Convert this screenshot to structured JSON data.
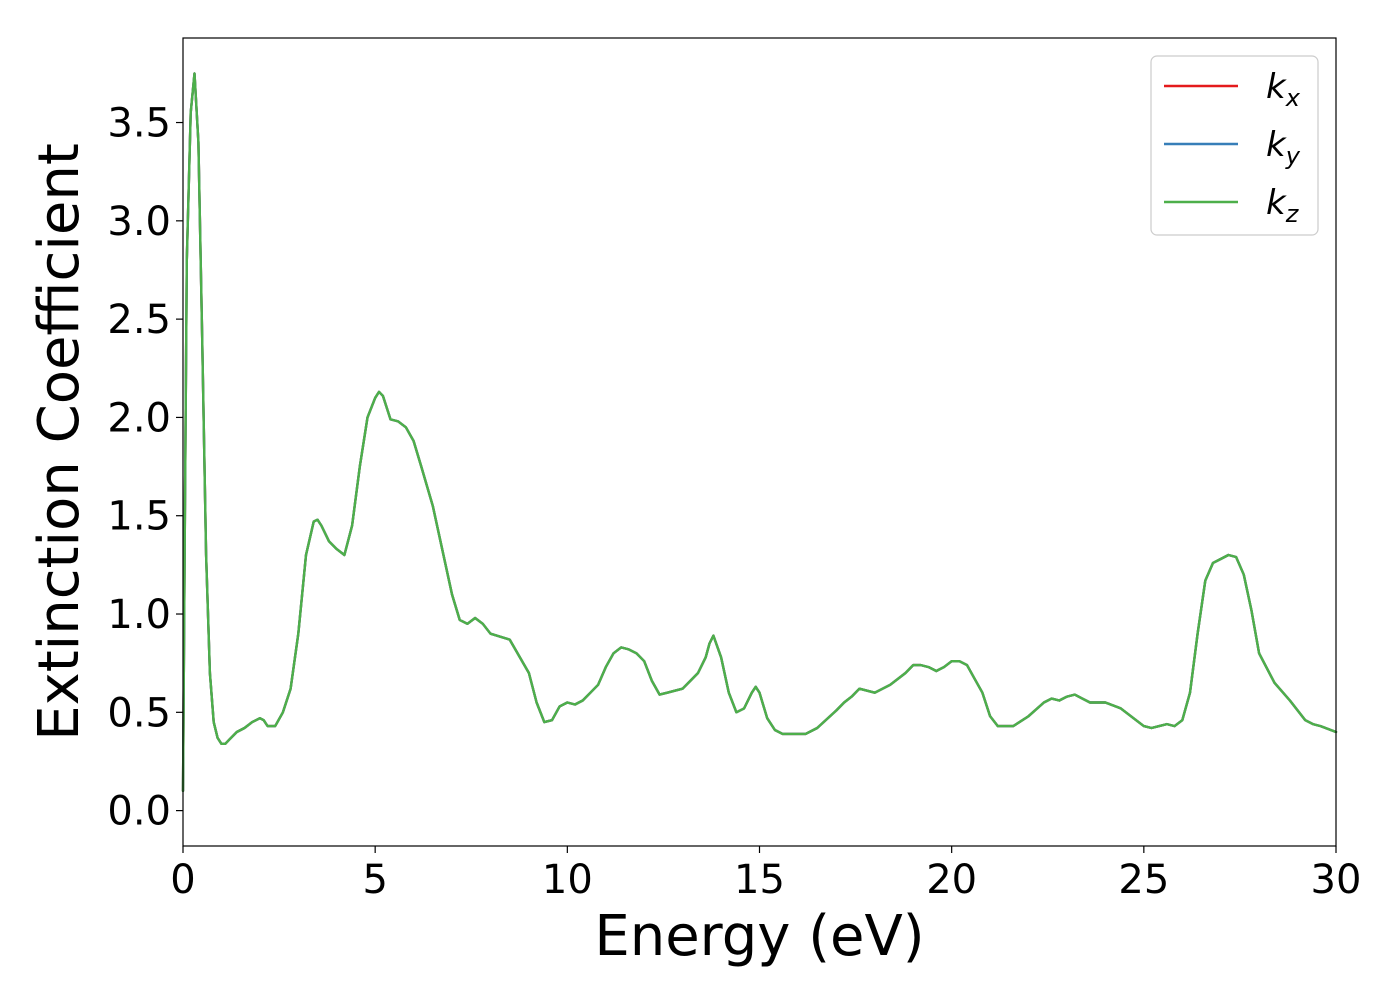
{
  "chart_data": {
    "type": "line",
    "title": "",
    "xlabel": "Energy (eV)",
    "ylabel": "Extinction Coefficient",
    "xlim": [
      0,
      30
    ],
    "ylim": [
      -0.18,
      3.93
    ],
    "x_ticks": [
      0,
      5,
      10,
      15,
      20,
      25,
      30
    ],
    "x_tick_labels": [
      "0",
      "5",
      "10",
      "15",
      "20",
      "25",
      "30"
    ],
    "y_ticks": [
      0.0,
      0.5,
      1.0,
      1.5,
      2.0,
      2.5,
      3.0,
      3.5
    ],
    "y_tick_labels": [
      "0.0",
      "0.5",
      "1.0",
      "1.5",
      "2.0",
      "2.5",
      "3.0",
      "3.5"
    ],
    "grid": false,
    "legend_position": "top-right",
    "legend": [
      {
        "base": "k",
        "sub": "x",
        "color": "#e41a1c"
      },
      {
        "base": "k",
        "sub": "y",
        "color": "#377eb8"
      },
      {
        "base": "k",
        "sub": "z",
        "color": "#4daf4a"
      }
    ],
    "x": [
      0.0,
      0.05,
      0.1,
      0.2,
      0.3,
      0.4,
      0.5,
      0.6,
      0.7,
      0.8,
      0.9,
      1.0,
      1.1,
      1.2,
      1.4,
      1.6,
      1.8,
      2.0,
      2.1,
      2.2,
      2.4,
      2.6,
      2.8,
      3.0,
      3.2,
      3.4,
      3.5,
      3.6,
      3.8,
      4.0,
      4.2,
      4.4,
      4.6,
      4.8,
      5.0,
      5.1,
      5.2,
      5.4,
      5.6,
      5.8,
      6.0,
      6.2,
      6.5,
      7.0,
      7.2,
      7.4,
      7.6,
      7.8,
      8.0,
      8.5,
      9.0,
      9.2,
      9.4,
      9.6,
      9.8,
      10.0,
      10.2,
      10.4,
      10.6,
      10.8,
      11.0,
      11.2,
      11.4,
      11.6,
      11.8,
      12.0,
      12.2,
      12.4,
      12.6,
      12.8,
      13.0,
      13.2,
      13.4,
      13.6,
      13.7,
      13.8,
      14.0,
      14.2,
      14.4,
      14.6,
      14.8,
      14.9,
      15.0,
      15.2,
      15.4,
      15.6,
      15.8,
      16.0,
      16.2,
      16.5,
      17.0,
      17.2,
      17.4,
      17.6,
      17.8,
      18.0,
      18.4,
      18.8,
      19.0,
      19.2,
      19.4,
      19.6,
      19.8,
      20.0,
      20.2,
      20.4,
      20.6,
      20.8,
      21.0,
      21.2,
      21.6,
      22.0,
      22.4,
      22.6,
      22.8,
      23.0,
      23.2,
      23.4,
      23.6,
      23.8,
      24.0,
      24.4,
      24.8,
      25.0,
      25.2,
      25.4,
      25.6,
      25.8,
      26.0,
      26.2,
      26.4,
      26.6,
      26.8,
      27.0,
      27.2,
      27.4,
      27.6,
      27.8,
      28.0,
      28.4,
      28.8,
      29.2,
      29.4,
      29.6,
      30.0
    ],
    "series": [
      {
        "name": "k_x",
        "color": "#e41a1c",
        "values": [
          0.1,
          1.5,
          2.8,
          3.55,
          3.75,
          3.4,
          2.4,
          1.3,
          0.7,
          0.45,
          0.37,
          0.34,
          0.34,
          0.36,
          0.4,
          0.42,
          0.45,
          0.47,
          0.46,
          0.43,
          0.43,
          0.5,
          0.62,
          0.9,
          1.3,
          1.47,
          1.48,
          1.45,
          1.37,
          1.33,
          1.3,
          1.45,
          1.75,
          2.0,
          2.1,
          2.13,
          2.11,
          1.99,
          1.98,
          1.95,
          1.88,
          1.75,
          1.55,
          1.1,
          0.97,
          0.95,
          0.98,
          0.95,
          0.9,
          0.87,
          0.7,
          0.55,
          0.45,
          0.46,
          0.53,
          0.55,
          0.54,
          0.56,
          0.6,
          0.64,
          0.73,
          0.8,
          0.83,
          0.82,
          0.8,
          0.76,
          0.66,
          0.59,
          0.6,
          0.61,
          0.62,
          0.66,
          0.7,
          0.78,
          0.85,
          0.89,
          0.78,
          0.6,
          0.5,
          0.52,
          0.6,
          0.63,
          0.6,
          0.47,
          0.41,
          0.39,
          0.39,
          0.39,
          0.39,
          0.42,
          0.51,
          0.55,
          0.58,
          0.62,
          0.61,
          0.6,
          0.64,
          0.7,
          0.74,
          0.74,
          0.73,
          0.71,
          0.73,
          0.76,
          0.76,
          0.74,
          0.67,
          0.6,
          0.48,
          0.43,
          0.43,
          0.48,
          0.55,
          0.57,
          0.56,
          0.58,
          0.59,
          0.57,
          0.55,
          0.55,
          0.55,
          0.52,
          0.46,
          0.43,
          0.42,
          0.43,
          0.44,
          0.43,
          0.46,
          0.6,
          0.9,
          1.17,
          1.26,
          1.28,
          1.3,
          1.29,
          1.2,
          1.02,
          0.8,
          0.65,
          0.56,
          0.46,
          0.44,
          0.43,
          0.4
        ]
      },
      {
        "name": "k_y",
        "color": "#377eb8",
        "values": [
          0.1,
          1.5,
          2.8,
          3.55,
          3.75,
          3.4,
          2.4,
          1.3,
          0.7,
          0.45,
          0.37,
          0.34,
          0.34,
          0.36,
          0.4,
          0.42,
          0.45,
          0.47,
          0.46,
          0.43,
          0.43,
          0.5,
          0.62,
          0.9,
          1.3,
          1.47,
          1.48,
          1.45,
          1.37,
          1.33,
          1.3,
          1.45,
          1.75,
          2.0,
          2.1,
          2.13,
          2.11,
          1.99,
          1.98,
          1.95,
          1.88,
          1.75,
          1.55,
          1.1,
          0.97,
          0.95,
          0.98,
          0.95,
          0.9,
          0.87,
          0.7,
          0.55,
          0.45,
          0.46,
          0.53,
          0.55,
          0.54,
          0.56,
          0.6,
          0.64,
          0.73,
          0.8,
          0.83,
          0.82,
          0.8,
          0.76,
          0.66,
          0.59,
          0.6,
          0.61,
          0.62,
          0.66,
          0.7,
          0.78,
          0.85,
          0.89,
          0.78,
          0.6,
          0.5,
          0.52,
          0.6,
          0.63,
          0.6,
          0.47,
          0.41,
          0.39,
          0.39,
          0.39,
          0.39,
          0.42,
          0.51,
          0.55,
          0.58,
          0.62,
          0.61,
          0.6,
          0.64,
          0.7,
          0.74,
          0.74,
          0.73,
          0.71,
          0.73,
          0.76,
          0.76,
          0.74,
          0.67,
          0.6,
          0.48,
          0.43,
          0.43,
          0.48,
          0.55,
          0.57,
          0.56,
          0.58,
          0.59,
          0.57,
          0.55,
          0.55,
          0.55,
          0.52,
          0.46,
          0.43,
          0.42,
          0.43,
          0.44,
          0.43,
          0.46,
          0.6,
          0.9,
          1.17,
          1.26,
          1.28,
          1.3,
          1.29,
          1.2,
          1.02,
          0.8,
          0.65,
          0.56,
          0.46,
          0.44,
          0.43,
          0.4
        ]
      },
      {
        "name": "k_z",
        "color": "#4daf4a",
        "values": [
          0.1,
          1.5,
          2.8,
          3.55,
          3.75,
          3.4,
          2.4,
          1.3,
          0.7,
          0.45,
          0.37,
          0.34,
          0.34,
          0.36,
          0.4,
          0.42,
          0.45,
          0.47,
          0.46,
          0.43,
          0.43,
          0.5,
          0.62,
          0.9,
          1.3,
          1.47,
          1.48,
          1.45,
          1.37,
          1.33,
          1.3,
          1.45,
          1.75,
          2.0,
          2.1,
          2.13,
          2.11,
          1.99,
          1.98,
          1.95,
          1.88,
          1.75,
          1.55,
          1.1,
          0.97,
          0.95,
          0.98,
          0.95,
          0.9,
          0.87,
          0.7,
          0.55,
          0.45,
          0.46,
          0.53,
          0.55,
          0.54,
          0.56,
          0.6,
          0.64,
          0.73,
          0.8,
          0.83,
          0.82,
          0.8,
          0.76,
          0.66,
          0.59,
          0.6,
          0.61,
          0.62,
          0.66,
          0.7,
          0.78,
          0.85,
          0.89,
          0.78,
          0.6,
          0.5,
          0.52,
          0.6,
          0.63,
          0.6,
          0.47,
          0.41,
          0.39,
          0.39,
          0.39,
          0.39,
          0.42,
          0.51,
          0.55,
          0.58,
          0.62,
          0.61,
          0.6,
          0.64,
          0.7,
          0.74,
          0.74,
          0.73,
          0.71,
          0.73,
          0.76,
          0.76,
          0.74,
          0.67,
          0.6,
          0.48,
          0.43,
          0.43,
          0.48,
          0.55,
          0.57,
          0.56,
          0.58,
          0.59,
          0.57,
          0.55,
          0.55,
          0.55,
          0.52,
          0.46,
          0.43,
          0.42,
          0.43,
          0.44,
          0.43,
          0.46,
          0.6,
          0.9,
          1.17,
          1.26,
          1.28,
          1.3,
          1.29,
          1.2,
          1.02,
          0.8,
          0.65,
          0.56,
          0.46,
          0.44,
          0.43,
          0.4
        ]
      }
    ]
  }
}
